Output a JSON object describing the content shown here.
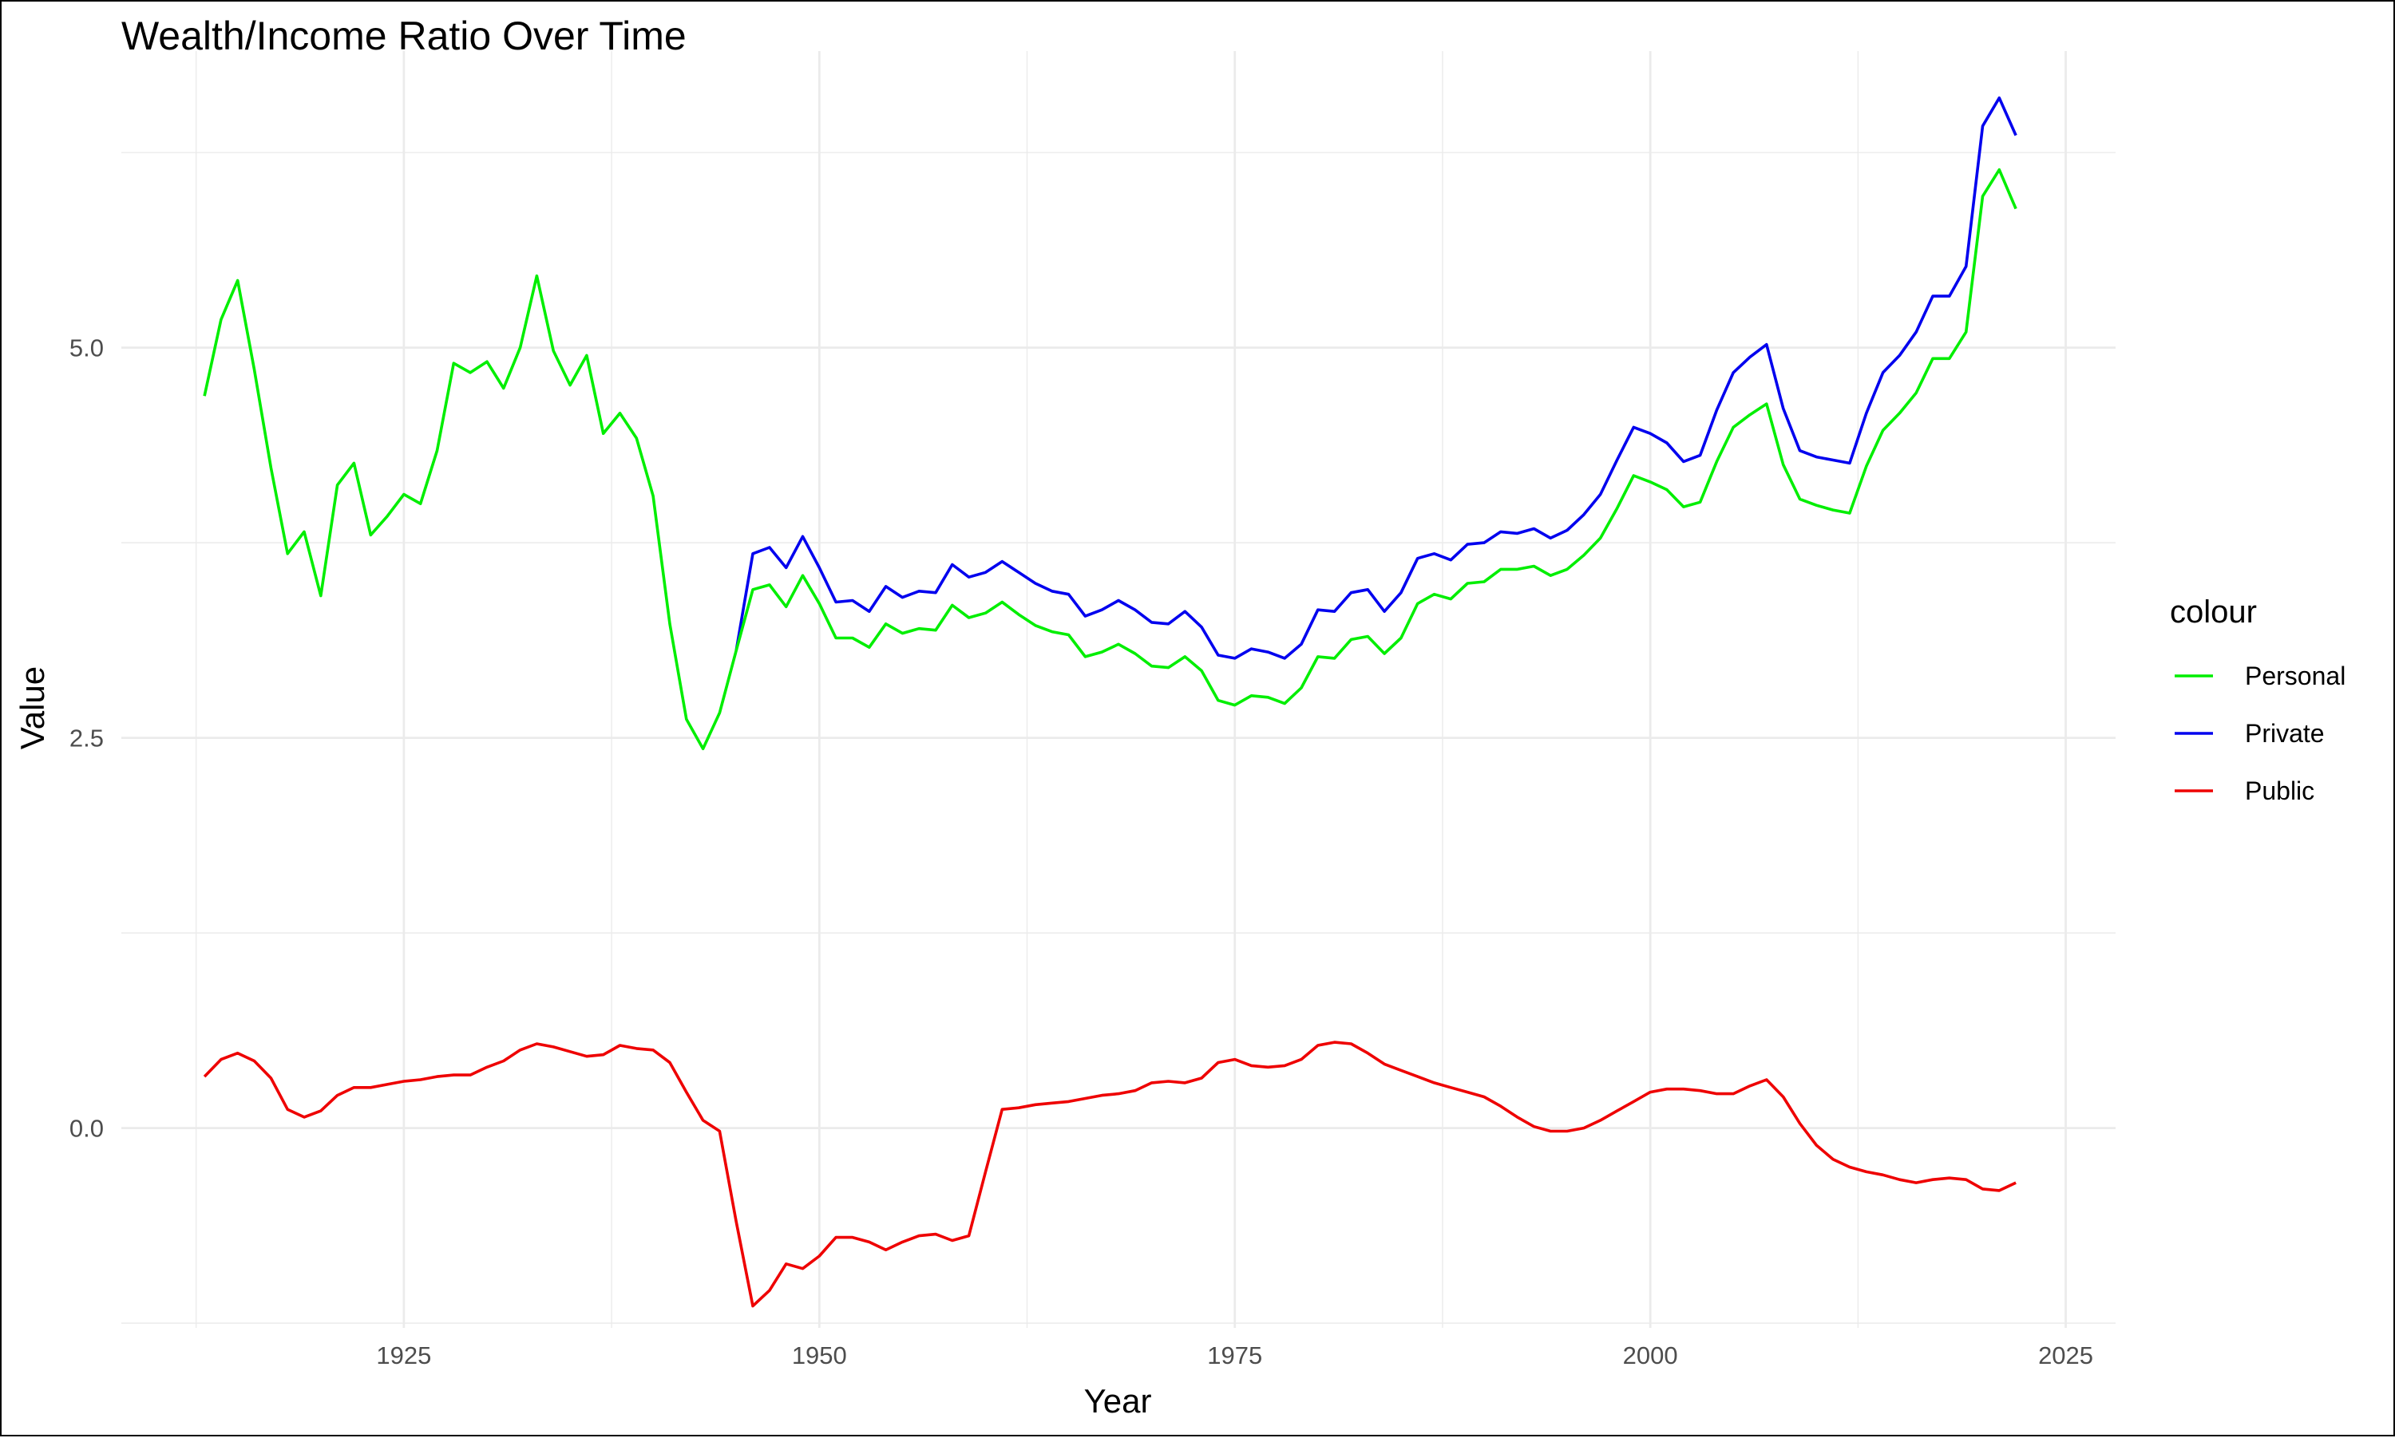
{
  "chart_data": {
    "type": "line",
    "title": "Wealth/Income Ratio Over Time",
    "xlabel": "Year",
    "ylabel": "Value",
    "xlim": [
      1908,
      2028
    ],
    "ylim": [
      -1.28,
      6.9
    ],
    "x_ticks": [
      1925,
      1950,
      1975,
      2000,
      2025
    ],
    "x_tick_labels": [
      "1925",
      "1950",
      "1975",
      "2000",
      "2025"
    ],
    "y_ticks": [
      0,
      2.5,
      5
    ],
    "y_tick_labels": [
      "0.0",
      "2.5",
      "5.0"
    ],
    "grid": true,
    "legend_title": "colour",
    "legend_position": "right",
    "series": [
      {
        "name": "Personal",
        "color": "#00ee00",
        "x": [
          1913,
          1914,
          1915,
          1916,
          1917,
          1918,
          1919,
          1920,
          1921,
          1922,
          1923,
          1924,
          1925,
          1926,
          1927,
          1928,
          1929,
          1930,
          1931,
          1932,
          1933,
          1934,
          1935,
          1936,
          1937,
          1938,
          1939,
          1940,
          1941,
          1942,
          1943,
          1944,
          1945,
          1946,
          1947,
          1948,
          1949,
          1950,
          1951,
          1952,
          1953,
          1954,
          1955,
          1956,
          1957,
          1958,
          1959,
          1960,
          1961,
          1962,
          1963,
          1964,
          1965,
          1966,
          1967,
          1968,
          1969,
          1970,
          1971,
          1972,
          1973,
          1974,
          1975,
          1976,
          1977,
          1978,
          1979,
          1980,
          1981,
          1982,
          1983,
          1984,
          1985,
          1986,
          1987,
          1988,
          1989,
          1990,
          1991,
          1992,
          1993,
          1994,
          1995,
          1996,
          1997,
          1998,
          1999,
          2000,
          2001,
          2002,
          2003,
          2004,
          2005,
          2006,
          2007,
          2008,
          2009,
          2010,
          2011,
          2012,
          2013,
          2014,
          2015,
          2016,
          2017,
          2018,
          2019,
          2020,
          2021,
          2022
        ],
        "values": [
          4.69,
          5.18,
          5.43,
          4.86,
          4.23,
          3.68,
          3.82,
          3.41,
          4.12,
          4.26,
          3.8,
          3.92,
          4.06,
          4.0,
          4.34,
          4.9,
          4.84,
          4.91,
          4.74,
          5.0,
          5.46,
          4.98,
          4.76,
          4.95,
          4.45,
          4.58,
          4.42,
          4.05,
          3.23,
          2.62,
          2.43,
          2.66,
          3.06,
          3.45,
          3.48,
          3.34,
          3.54,
          3.36,
          3.14,
          3.14,
          3.08,
          3.23,
          3.17,
          3.2,
          3.19,
          3.35,
          3.27,
          3.3,
          3.37,
          3.29,
          3.22,
          3.18,
          3.16,
          3.02,
          3.05,
          3.1,
          3.04,
          2.96,
          2.95,
          3.02,
          2.93,
          2.74,
          2.71,
          2.77,
          2.76,
          2.72,
          2.82,
          3.02,
          3.01,
          3.13,
          3.15,
          3.04,
          3.14,
          3.36,
          3.42,
          3.39,
          3.49,
          3.5,
          3.58,
          3.58,
          3.6,
          3.54,
          3.58,
          3.67,
          3.78,
          3.97,
          4.18,
          4.14,
          4.09,
          3.98,
          4.01,
          4.27,
          4.49,
          4.57,
          4.64,
          4.25,
          4.03,
          3.99,
          3.96,
          3.94,
          4.24,
          4.47,
          4.58,
          4.71,
          4.93,
          4.93,
          5.1,
          5.97,
          6.14,
          5.89
        ]
      },
      {
        "name": "Private",
        "color": "#0000ee",
        "x": [
          1945,
          1946,
          1947,
          1948,
          1949,
          1950,
          1951,
          1952,
          1953,
          1954,
          1955,
          1956,
          1957,
          1958,
          1959,
          1960,
          1961,
          1962,
          1963,
          1964,
          1965,
          1966,
          1967,
          1968,
          1969,
          1970,
          1971,
          1972,
          1973,
          1974,
          1975,
          1976,
          1977,
          1978,
          1979,
          1980,
          1981,
          1982,
          1983,
          1984,
          1985,
          1986,
          1987,
          1988,
          1989,
          1990,
          1991,
          1992,
          1993,
          1994,
          1995,
          1996,
          1997,
          1998,
          1999,
          2000,
          2001,
          2002,
          2003,
          2004,
          2005,
          2006,
          2007,
          2008,
          2009,
          2010,
          2011,
          2012,
          2013,
          2014,
          2015,
          2016,
          2017,
          2018,
          2019,
          2020,
          2021,
          2022
        ],
        "values": [
          3.06,
          3.68,
          3.72,
          3.59,
          3.79,
          3.59,
          3.37,
          3.38,
          3.31,
          3.47,
          3.4,
          3.44,
          3.43,
          3.61,
          3.53,
          3.56,
          3.63,
          3.56,
          3.49,
          3.44,
          3.42,
          3.28,
          3.32,
          3.38,
          3.32,
          3.24,
          3.23,
          3.31,
          3.21,
          3.03,
          3.01,
          3.07,
          3.05,
          3.01,
          3.1,
          3.32,
          3.31,
          3.43,
          3.45,
          3.31,
          3.43,
          3.65,
          3.68,
          3.64,
          3.74,
          3.75,
          3.82,
          3.81,
          3.84,
          3.78,
          3.83,
          3.93,
          4.06,
          4.28,
          4.49,
          4.45,
          4.39,
          4.27,
          4.31,
          4.6,
          4.84,
          4.94,
          5.02,
          4.61,
          4.34,
          4.3,
          4.28,
          4.26,
          4.58,
          4.84,
          4.95,
          5.1,
          5.33,
          5.33,
          5.52,
          6.42,
          6.6,
          6.36
        ]
      },
      {
        "name": "Public",
        "color": "#ee0000",
        "x": [
          1913,
          1914,
          1915,
          1916,
          1917,
          1918,
          1919,
          1920,
          1921,
          1922,
          1923,
          1924,
          1925,
          1926,
          1927,
          1928,
          1929,
          1930,
          1931,
          1932,
          1933,
          1934,
          1935,
          1936,
          1937,
          1938,
          1939,
          1940,
          1941,
          1942,
          1943,
          1944,
          1945,
          1946,
          1947,
          1948,
          1949,
          1950,
          1951,
          1952,
          1953,
          1954,
          1955,
          1956,
          1957,
          1958,
          1959,
          1960,
          1961,
          1962,
          1963,
          1964,
          1965,
          1966,
          1967,
          1968,
          1969,
          1970,
          1971,
          1972,
          1973,
          1974,
          1975,
          1976,
          1977,
          1978,
          1979,
          1980,
          1981,
          1982,
          1983,
          1984,
          1985,
          1986,
          1987,
          1988,
          1989,
          1990,
          1991,
          1992,
          1993,
          1994,
          1995,
          1996,
          1997,
          1998,
          1999,
          2000,
          2001,
          2002,
          2003,
          2004,
          2005,
          2006,
          2007,
          2008,
          2009,
          2010,
          2011,
          2012,
          2013,
          2014,
          2015,
          2016,
          2017,
          2018,
          2019,
          2020,
          2021,
          2022
        ],
        "values": [
          0.33,
          0.44,
          0.48,
          0.43,
          0.32,
          0.12,
          0.07,
          0.11,
          0.21,
          0.26,
          0.26,
          0.28,
          0.3,
          0.31,
          0.33,
          0.34,
          0.34,
          0.39,
          0.43,
          0.5,
          0.54,
          0.52,
          0.49,
          0.46,
          0.47,
          0.53,
          0.51,
          0.5,
          0.42,
          0.23,
          0.05,
          -0.02,
          -0.6,
          -1.14,
          -1.04,
          -0.87,
          -0.9,
          -0.82,
          -0.7,
          -0.7,
          -0.73,
          -0.78,
          -0.73,
          -0.69,
          -0.68,
          -0.72,
          -0.69,
          -0.28,
          0.12,
          0.13,
          0.15,
          0.16,
          0.17,
          0.19,
          0.21,
          0.22,
          0.24,
          0.29,
          0.3,
          0.29,
          0.32,
          0.42,
          0.44,
          0.4,
          0.39,
          0.4,
          0.44,
          0.53,
          0.55,
          0.54,
          0.48,
          0.41,
          0.37,
          0.33,
          0.29,
          0.26,
          0.23,
          0.2,
          0.14,
          0.07,
          0.01,
          -0.02,
          -0.02,
          0.0,
          0.05,
          0.11,
          0.17,
          0.23,
          0.25,
          0.25,
          0.24,
          0.22,
          0.22,
          0.27,
          0.31,
          0.2,
          0.03,
          -0.11,
          -0.2,
          -0.25,
          -0.28,
          -0.3,
          -0.33,
          -0.35,
          -0.33,
          -0.32,
          -0.33,
          -0.39,
          -0.4,
          -0.35
        ]
      }
    ]
  }
}
